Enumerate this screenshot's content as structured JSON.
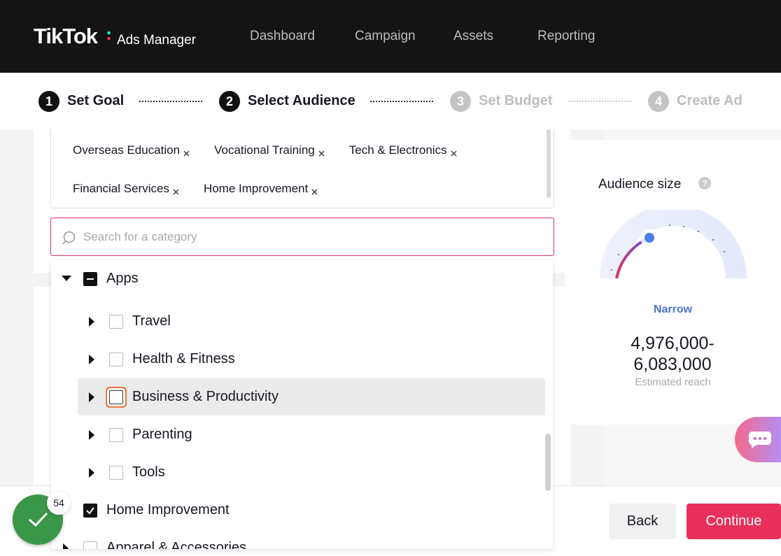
{
  "nav": {
    "brand": "TikTok",
    "product": "Ads Manager",
    "items": [
      "Dashboard",
      "Campaign",
      "Assets",
      "Reporting"
    ]
  },
  "steps": [
    {
      "number": 1,
      "label": "Set Goal"
    },
    {
      "number": 2,
      "label": "Select Audience"
    },
    {
      "number": 3,
      "label": "Set Budget"
    },
    {
      "number": 4,
      "label": "Create Ad"
    }
  ],
  "selected_tags": [
    "Overseas Education",
    "Vocational Training",
    "Tech & Electronics",
    "Financial Services",
    "Home Improvement"
  ],
  "search_placeholder": "Search for a category",
  "tree": {
    "parent": "Apps",
    "children": [
      "Travel",
      "Health & Fitness",
      "Business & Productivity",
      "Parenting",
      "Tools"
    ],
    "siblings": [
      "Home Improvement",
      "Apparel & Accessories"
    ]
  },
  "audience": {
    "title": "Audience size",
    "level": "Narrow",
    "reach": "4,976,000-6,083,000",
    "reach_label": "Estimated reach"
  },
  "badge": 54,
  "buttons": {
    "back": "Back",
    "continue": "Continue"
  }
}
